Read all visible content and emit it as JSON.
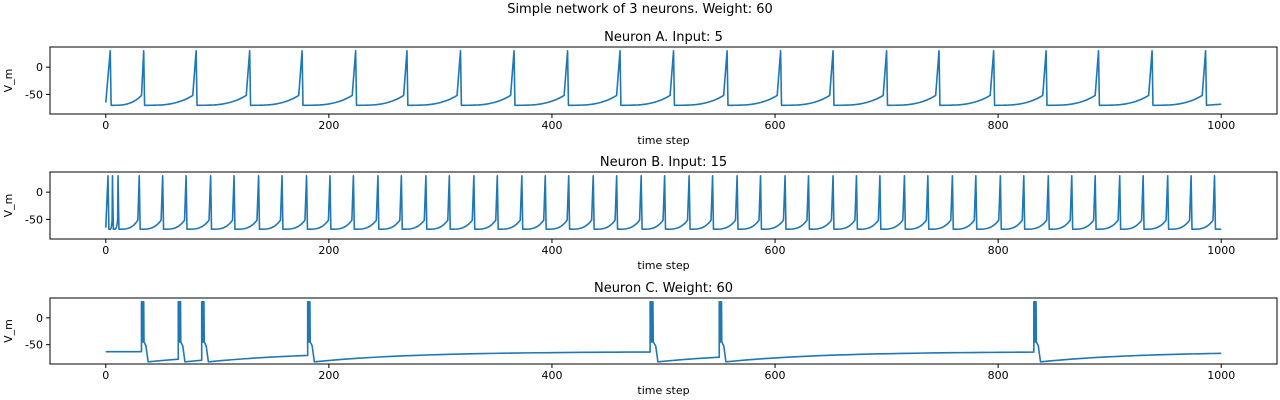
{
  "figure": {
    "title": "Simple network of 3 neurons. Weight: 60"
  },
  "colors": {
    "trace": "#1f77b4",
    "axis": "#000000",
    "background": "#ffffff"
  },
  "chart_data": [
    {
      "type": "line",
      "title": "Neuron A. Input: 5",
      "xlabel": "time step",
      "ylabel": "V_m",
      "xlim": [
        -50,
        1050
      ],
      "ylim": [
        -86,
        37
      ],
      "xticks": [
        0,
        200,
        400,
        600,
        800,
        1000
      ],
      "yticks": [
        0,
        -50
      ],
      "grid": false,
      "series": [
        {
          "v_rest": -65,
          "v_reset": -70,
          "v_peak": 30,
          "spike_times": [
            4,
            34,
            81,
            129,
            176,
            224,
            270,
            318,
            366,
            414,
            461,
            509,
            557,
            605,
            652,
            700,
            747,
            796,
            843,
            890,
            938,
            986
          ],
          "x_start": 0,
          "x_end": 1000,
          "end_value": -68
        }
      ]
    },
    {
      "type": "line",
      "title": "Neuron B. Input: 15",
      "xlabel": "time step",
      "ylabel": "V_m",
      "xlim": [
        -50,
        1050
      ],
      "ylim": [
        -86,
        37
      ],
      "xticks": [
        0,
        200,
        400,
        600,
        800,
        1000
      ],
      "yticks": [
        0,
        -50
      ],
      "grid": false,
      "series": [
        {
          "v_rest": -65,
          "v_reset": -68,
          "v_peak": 30,
          "spike_times": [
            2,
            6,
            11,
            30,
            51,
            72,
            94,
            115,
            137,
            158,
            180,
            201,
            222,
            244,
            265,
            287,
            308,
            330,
            351,
            373,
            394,
            415,
            437,
            458,
            480,
            501,
            523,
            544,
            566,
            587,
            609,
            630,
            652,
            673,
            694,
            716,
            737,
            759,
            780,
            802,
            823,
            845,
            866,
            887,
            909,
            930,
            952,
            973,
            994
          ],
          "x_start": 0,
          "x_end": 1000,
          "end_value": -68
        }
      ]
    },
    {
      "type": "line",
      "title": "Neuron C. Weight: 60",
      "xlabel": "time step",
      "ylabel": "V_m",
      "xlim": [
        -50,
        1050
      ],
      "ylim": [
        -86,
        37
      ],
      "xticks": [
        0,
        200,
        400,
        600,
        800,
        1000
      ],
      "yticks": [
        0,
        -50
      ],
      "grid": false,
      "series": [
        {
          "v_rest": -63,
          "v_reset": -82,
          "v_peak": 30,
          "bursts": [
            {
              "start": 32,
              "end": 36
            },
            {
              "start": 65,
              "end": 69
            },
            {
              "start": 86,
              "end": 90
            },
            {
              "start": 181,
              "end": 185
            },
            {
              "start": 488,
              "end": 493
            },
            {
              "start": 550,
              "end": 554
            },
            {
              "start": 832,
              "end": 836
            }
          ],
          "x_start": 0,
          "x_end": 1000,
          "start_value": -63,
          "end_value": -63
        }
      ]
    }
  ]
}
